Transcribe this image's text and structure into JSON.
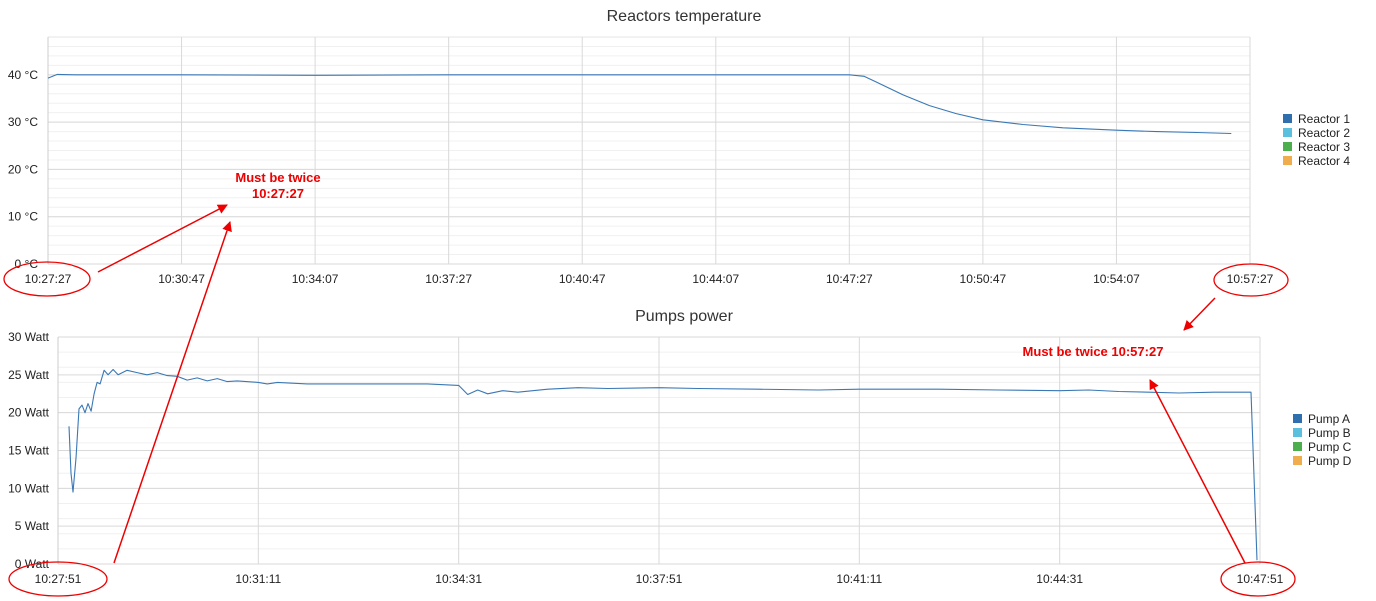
{
  "chart_data": [
    {
      "type": "line",
      "title": "Reactors temperature",
      "y_unit": "°C",
      "ylim": [
        0,
        48
      ],
      "y_ticks": [
        "0 °C",
        "10 °C",
        "20 °C",
        "30 °C",
        "40 °C"
      ],
      "x_ticks": [
        "10:27:27",
        "10:30:47",
        "10:34:07",
        "10:37:27",
        "10:40:47",
        "10:44:07",
        "10:47:27",
        "10:50:47",
        "10:54:07",
        "10:57:27"
      ],
      "grid": true,
      "legend": {
        "placement": "right",
        "entries": [
          "Reactor 1",
          "Reactor 2",
          "Reactor 3",
          "Reactor 4"
        ]
      },
      "series": [
        {
          "name": "Reactor 1",
          "color": "#3a78b5",
          "points": [
            [
              "10:27:27",
              39.3
            ],
            [
              "10:27:41",
              40.1
            ],
            [
              "10:28:07",
              40.0
            ],
            [
              "10:30:47",
              40.0
            ],
            [
              "10:34:07",
              39.9
            ],
            [
              "10:37:27",
              40.0
            ],
            [
              "10:40:47",
              40.0
            ],
            [
              "10:44:07",
              40.0
            ],
            [
              "10:47:27",
              40.0
            ],
            [
              "10:47:49",
              39.7
            ],
            [
              "10:48:07",
              38.5
            ],
            [
              "10:48:47",
              35.8
            ],
            [
              "10:49:27",
              33.5
            ],
            [
              "10:50:07",
              31.8
            ],
            [
              "10:50:47",
              30.5
            ],
            [
              "10:51:47",
              29.5
            ],
            [
              "10:52:47",
              28.8
            ],
            [
              "10:54:07",
              28.3
            ],
            [
              "10:55:07",
              28.0
            ],
            [
              "10:56:07",
              27.8
            ],
            [
              "10:56:59",
              27.6
            ]
          ]
        }
      ],
      "edge_labels": {
        "left": "10:27:27",
        "right": "10:57:27"
      }
    },
    {
      "type": "line",
      "title": "Pumps power",
      "y_unit": "Watt",
      "ylim": [
        0,
        30
      ],
      "y_ticks": [
        "0 Watt",
        "5 Watt",
        "10 Watt",
        "15 Watt",
        "20 Watt",
        "25 Watt",
        "30 Watt"
      ],
      "x_ticks": [
        "10:27:51",
        "10:31:11",
        "10:34:31",
        "10:37:51",
        "10:41:11",
        "10:44:31",
        "10:47:51"
      ],
      "grid": true,
      "legend": {
        "placement": "right",
        "entries": [
          "Pump A",
          "Pump B",
          "Pump C",
          "Pump D"
        ]
      },
      "series": [
        {
          "name": "Pump A",
          "color": "#3a78b5",
          "points": [
            [
              "10:28:02",
              18.2
            ],
            [
              "10:28:04",
              12.0
            ],
            [
              "10:28:06",
              9.5
            ],
            [
              "10:28:09",
              14.0
            ],
            [
              "10:28:12",
              20.5
            ],
            [
              "10:28:15",
              21.0
            ],
            [
              "10:28:18",
              20.0
            ],
            [
              "10:28:21",
              21.2
            ],
            [
              "10:28:24",
              20.2
            ],
            [
              "10:28:27",
              22.5
            ],
            [
              "10:28:30",
              24.0
            ],
            [
              "10:28:33",
              23.8
            ],
            [
              "10:28:37",
              25.6
            ],
            [
              "10:28:41",
              25.0
            ],
            [
              "10:28:46",
              25.7
            ],
            [
              "10:28:51",
              25.0
            ],
            [
              "10:29:00",
              25.6
            ],
            [
              "10:29:10",
              25.3
            ],
            [
              "10:29:20",
              25.0
            ],
            [
              "10:29:30",
              25.3
            ],
            [
              "10:29:40",
              24.9
            ],
            [
              "10:29:50",
              24.8
            ],
            [
              "10:30:00",
              24.3
            ],
            [
              "10:30:10",
              24.6
            ],
            [
              "10:30:20",
              24.2
            ],
            [
              "10:30:30",
              24.5
            ],
            [
              "10:30:40",
              24.1
            ],
            [
              "10:30:50",
              24.2
            ],
            [
              "10:31:11",
              24.0
            ],
            [
              "10:31:20",
              23.8
            ],
            [
              "10:31:30",
              24.0
            ],
            [
              "10:32:00",
              23.8
            ],
            [
              "10:33:00",
              23.8
            ],
            [
              "10:34:00",
              23.8
            ],
            [
              "10:34:31",
              23.6
            ],
            [
              "10:34:40",
              22.4
            ],
            [
              "10:34:50",
              23.0
            ],
            [
              "10:35:00",
              22.5
            ],
            [
              "10:35:15",
              22.9
            ],
            [
              "10:35:30",
              22.7
            ],
            [
              "10:36:00",
              23.1
            ],
            [
              "10:36:30",
              23.3
            ],
            [
              "10:37:00",
              23.2
            ],
            [
              "10:37:51",
              23.3
            ],
            [
              "10:38:30",
              23.2
            ],
            [
              "10:39:30",
              23.1
            ],
            [
              "10:40:30",
              23.0
            ],
            [
              "10:41:11",
              23.1
            ],
            [
              "10:42:30",
              23.1
            ],
            [
              "10:43:30",
              23.0
            ],
            [
              "10:44:31",
              22.9
            ],
            [
              "10:45:00",
              23.0
            ],
            [
              "10:45:30",
              22.8
            ],
            [
              "10:46:00",
              22.7
            ],
            [
              "10:46:30",
              22.6
            ],
            [
              "10:47:05",
              22.7
            ],
            [
              "10:47:42",
              22.7
            ],
            [
              "10:47:48",
              0.5
            ]
          ]
        }
      ],
      "edge_labels": {
        "left": "10:27:51",
        "right": "10:47:51"
      }
    }
  ],
  "annotations": {
    "note_left_line1": "Must be twice",
    "note_left_line2": "10:27:27",
    "note_right": "Must be twice 10:57:27",
    "color": "#ee0000"
  }
}
